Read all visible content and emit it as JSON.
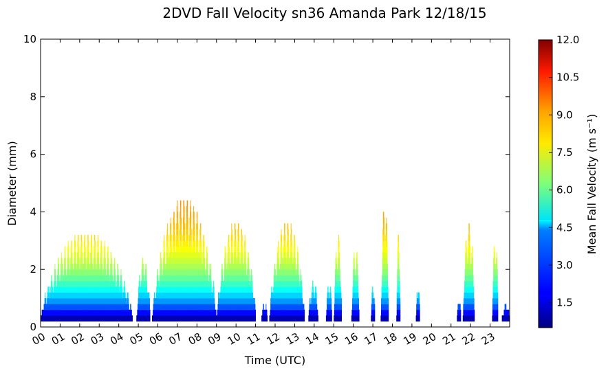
{
  "chart_data": {
    "type": "heatmap",
    "title": "2DVD Fall Velocity sn36 Amanda Park 12/18/15",
    "xlabel": "Time (UTC)",
    "ylabel": "Diameter (mm)",
    "colorbar_label": "Mean Fall Velocity (m s⁻¹)",
    "xlim": [
      0,
      24
    ],
    "ylim": [
      0,
      10
    ],
    "color_range": [
      0.5,
      12.0
    ],
    "colormap": "jet",
    "grid": false,
    "x_tick_labels": [
      "00",
      "01",
      "02",
      "03",
      "04",
      "05",
      "06",
      "07",
      "08",
      "09",
      "10",
      "11",
      "12",
      "13",
      "14",
      "15",
      "16",
      "17",
      "18",
      "19",
      "20",
      "21",
      "22",
      "23"
    ],
    "y_tick_labels": [
      "0",
      "2",
      "4",
      "6",
      "8",
      "10"
    ],
    "colorbar_tick_values": [
      1.5,
      3.0,
      4.5,
      6.0,
      7.5,
      9.0,
      10.5,
      12.0
    ],
    "colorbar_tick_labels": [
      "1.5",
      "3.0",
      "4.5",
      "6.0",
      "7.5",
      "9.0",
      "10.5",
      "12.0"
    ],
    "precip_periods": [
      {
        "start": 0.0,
        "end": 4.7,
        "max_diameter_mm": 3.2
      },
      {
        "start": 4.9,
        "end": 5.6,
        "max_diameter_mm": 2.4
      },
      {
        "start": 5.7,
        "end": 9.0,
        "max_diameter_mm": 4.4
      },
      {
        "start": 9.0,
        "end": 11.0,
        "max_diameter_mm": 3.6
      },
      {
        "start": 11.3,
        "end": 11.6,
        "max_diameter_mm": 0.8
      },
      {
        "start": 11.7,
        "end": 13.5,
        "max_diameter_mm": 3.6
      },
      {
        "start": 13.7,
        "end": 14.2,
        "max_diameter_mm": 1.6
      },
      {
        "start": 14.6,
        "end": 14.9,
        "max_diameter_mm": 1.6
      },
      {
        "start": 15.0,
        "end": 15.4,
        "max_diameter_mm": 3.2
      },
      {
        "start": 15.9,
        "end": 16.3,
        "max_diameter_mm": 2.8
      },
      {
        "start": 16.9,
        "end": 17.1,
        "max_diameter_mm": 1.6
      },
      {
        "start": 17.4,
        "end": 17.8,
        "max_diameter_mm": 4.4
      },
      {
        "start": 18.2,
        "end": 18.4,
        "max_diameter_mm": 3.2
      },
      {
        "start": 19.2,
        "end": 19.4,
        "max_diameter_mm": 1.6
      },
      {
        "start": 21.3,
        "end": 21.5,
        "max_diameter_mm": 1.0
      },
      {
        "start": 21.6,
        "end": 22.2,
        "max_diameter_mm": 3.6
      },
      {
        "start": 23.1,
        "end": 23.4,
        "max_diameter_mm": 3.2
      },
      {
        "start": 23.6,
        "end": 24.0,
        "max_diameter_mm": 0.8
      }
    ]
  }
}
